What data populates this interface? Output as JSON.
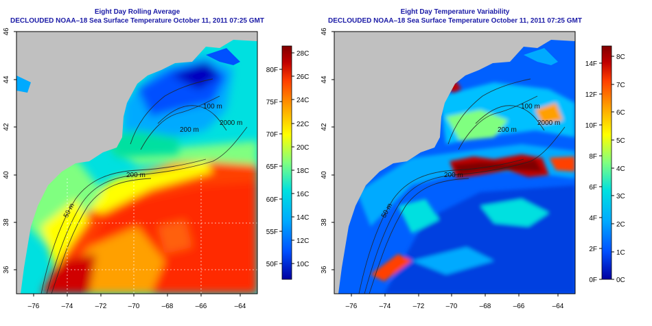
{
  "panels": [
    {
      "title": "Eight Day Rolling Average",
      "subtitle": "DECLOUDED NOAA–18 Sea Surface Temperature October 11, 2011 07:25 GMT",
      "x_ticks": [
        "–76",
        "–74",
        "–72",
        "–70",
        "–68",
        "–66",
        "–64"
      ],
      "y_ticks": [
        "46",
        "44",
        "42",
        "40",
        "38",
        "36"
      ],
      "colorbar": {
        "left_labels": [
          "28C",
          "26C",
          "24C",
          "22C",
          "20C",
          "18C",
          "16C",
          "14C",
          "12C",
          "10C"
        ],
        "right_labels": [
          "80F",
          "75F",
          "70F",
          "65F",
          "60F",
          "55F",
          "50F"
        ],
        "colors": [
          "#0000a0",
          "#0050ff",
          "#00aaff",
          "#00e0e0",
          "#80ff80",
          "#ffff00",
          "#ffa000",
          "#ff4000",
          "#c00000",
          "#800000"
        ]
      },
      "contour_labels": [
        "100 m",
        "200 m",
        "2000 m",
        "200 m",
        "50 m"
      ]
    },
    {
      "title": "Eight Day Temperature Variability",
      "subtitle": "DECLOUDED NOAA–18 Sea Surface Temperature October 11, 2011 07:25 GMT",
      "x_ticks": [
        "–76",
        "–74",
        "–72",
        "–70",
        "–68",
        "–66",
        "–64"
      ],
      "y_ticks": [
        "46",
        "44",
        "42",
        "40",
        "38",
        "36"
      ],
      "colorbar": {
        "left_labels": [
          "14F",
          "12F",
          "10F",
          "8F",
          "6F",
          "4F",
          "2F",
          "0F"
        ],
        "right_labels": [
          "8C",
          "7C",
          "6C",
          "5C",
          "4C",
          "3C",
          "2C",
          "1C",
          "0C"
        ],
        "colors": [
          "#0000a0",
          "#0050ff",
          "#00aaff",
          "#00e0e0",
          "#80ff80",
          "#ffff00",
          "#ffa000",
          "#ff4000",
          "#c00000",
          "#800000"
        ]
      },
      "contour_labels": [
        "100 m",
        "200 m",
        "2000 m",
        "200 m",
        "50 m"
      ]
    }
  ],
  "colors": {
    "land": "#c0c0c0",
    "title": "#1a1aa6"
  }
}
